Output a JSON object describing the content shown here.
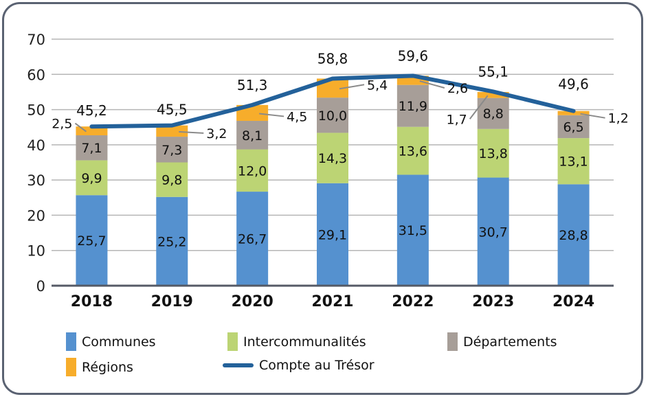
{
  "chart_data": {
    "type": "bar",
    "stacked": true,
    "title": "",
    "xlabel": "",
    "ylabel": "",
    "ylim": [
      0,
      70
    ],
    "yticks": [
      0,
      10,
      20,
      30,
      40,
      50,
      60,
      70
    ],
    "ytick_labels": [
      "0",
      "10",
      "20",
      "30",
      "40",
      "50",
      "60",
      "70"
    ],
    "grid": true,
    "categories": [
      "2018",
      "2019",
      "2020",
      "2021",
      "2022",
      "2023",
      "2024"
    ],
    "series": [
      {
        "name": "Communes",
        "color": "#5591cf",
        "values": [
          25.7,
          25.2,
          26.7,
          29.1,
          31.5,
          30.7,
          28.8
        ],
        "labels": [
          "25,7",
          "25,2",
          "26,7",
          "29,1",
          "31,5",
          "30,7",
          "28,8"
        ]
      },
      {
        "name": "Intercommunalités",
        "color": "#bcd474",
        "values": [
          9.9,
          9.8,
          12.0,
          14.3,
          13.6,
          13.8,
          13.1
        ],
        "labels": [
          "9,9",
          "9,8",
          "12,0",
          "14,3",
          "13,6",
          "13,8",
          "13,1"
        ]
      },
      {
        "name": "Départements",
        "color": "#a79e98",
        "values": [
          7.1,
          7.3,
          8.1,
          10.0,
          11.9,
          8.8,
          6.5
        ],
        "labels": [
          "7,1",
          "7,3",
          "8,1",
          "10,0",
          "11,9",
          "8,8",
          "6,5"
        ]
      },
      {
        "name": "Régions",
        "color": "#f7ad2b",
        "values": [
          2.5,
          3.2,
          4.5,
          5.4,
          2.6,
          1.7,
          1.2
        ],
        "labels": [
          "2,5",
          "3,2",
          "4,5",
          "5,4",
          "2,6",
          "1,7",
          "1,2"
        ]
      }
    ],
    "line_series": {
      "name": "Compte au Trésor",
      "color": "#23619a",
      "values": [
        45.2,
        45.5,
        51.3,
        58.8,
        59.6,
        55.1,
        49.6
      ],
      "labels": [
        "45,2",
        "45,5",
        "51,3",
        "58,8",
        "59,6",
        "55,1",
        "49,6"
      ]
    },
    "legend_position": "bottom",
    "legend": [
      "Communes",
      "Intercommunalités",
      "Départements",
      "Régions",
      "Compte au Trésor"
    ]
  }
}
